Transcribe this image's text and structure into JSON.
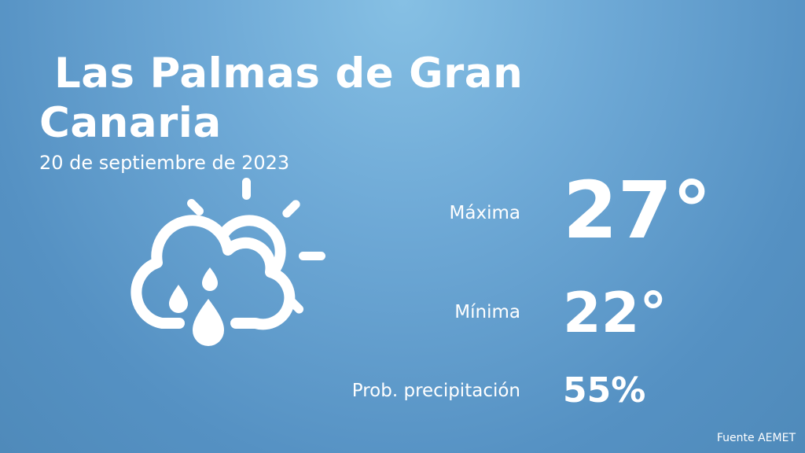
{
  "header": {
    "city": " Las Palmas de Gran Canaria",
    "date": "20 de septiembre de 2023"
  },
  "forecast": {
    "icon": "sun-cloud-rain-icon",
    "max": {
      "label": "Máxima",
      "value": "27°"
    },
    "min": {
      "label": "Mínima",
      "value": "22°"
    },
    "precipitation": {
      "label": "Prob. precipitación",
      "value": "55%"
    }
  },
  "footer": {
    "source": "Fuente AEMET"
  },
  "colors": {
    "background_top": "#86c0e4",
    "background_bottom": "#4f8aba",
    "text": "#ffffff"
  }
}
